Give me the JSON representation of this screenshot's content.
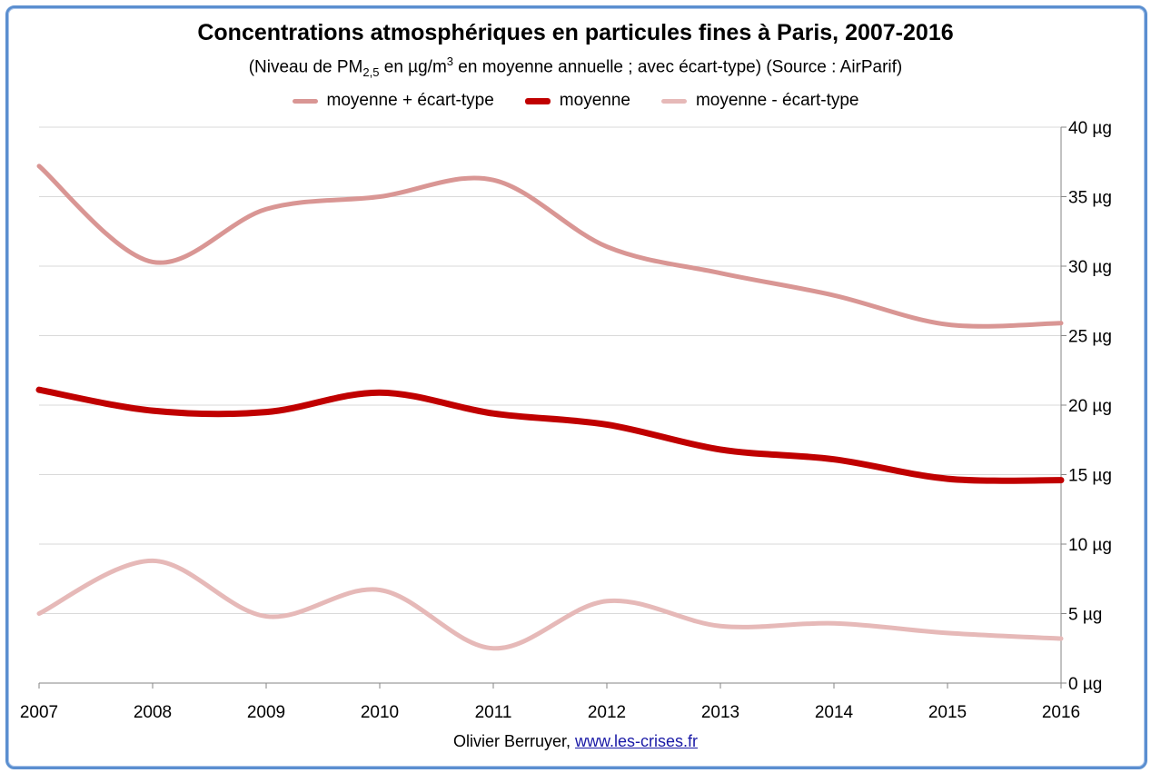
{
  "chart_data": {
    "type": "line",
    "title": "Concentrations atmosphériques en particules fines à Paris, 2007-2016",
    "subtitle": {
      "prefix": "(Niveau de PM",
      "sub": "2,5",
      "mid": " en µg/m",
      "sup": "3",
      "suffix": " en moyenne annuelle ; avec écart-type) (Source : AirParif)"
    },
    "x": [
      2007,
      2008,
      2009,
      2010,
      2011,
      2012,
      2013,
      2014,
      2015,
      2016
    ],
    "x_tick_labels": [
      "2007",
      "2008",
      "2009",
      "2010",
      "2011",
      "2012",
      "2013",
      "2014",
      "2015",
      "2016"
    ],
    "ylim": [
      0,
      40
    ],
    "y_ticks": [
      0,
      5,
      10,
      15,
      20,
      25,
      30,
      35,
      40
    ],
    "y_tick_labels": [
      "0 µg",
      "5 µg",
      "10 µg",
      "15 µg",
      "20 µg",
      "25 µg",
      "30 µg",
      "35 µg",
      "40 µg"
    ],
    "y_axis_side": "right",
    "grid": true,
    "legend_position": "top",
    "series": [
      {
        "name": "moyenne + écart-type",
        "color": "#d99694",
        "values": [
          37.2,
          30.3,
          34.1,
          35.0,
          36.2,
          31.4,
          29.5,
          27.9,
          25.8,
          25.9
        ]
      },
      {
        "name": "moyenne",
        "color": "#c00000",
        "values": [
          21.1,
          19.6,
          19.5,
          20.9,
          19.4,
          18.6,
          16.8,
          16.1,
          14.7,
          14.6
        ]
      },
      {
        "name": "moyenne - écart-type",
        "color": "#e6b9b8",
        "values": [
          5.0,
          8.8,
          4.8,
          6.7,
          2.5,
          5.9,
          4.1,
          4.3,
          3.6,
          3.2
        ]
      }
    ]
  },
  "credit": {
    "author": "Olivier Berruyer,",
    "link": "www.les-crises.fr"
  }
}
